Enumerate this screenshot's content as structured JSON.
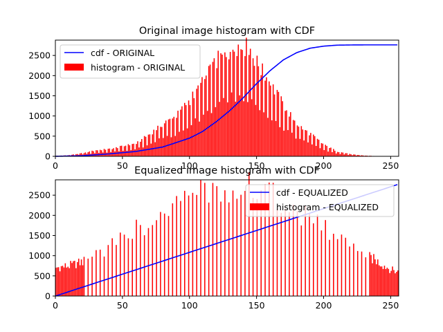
{
  "chart_data": [
    {
      "type": "bar",
      "title": "Original image histogram with CDF",
      "xlabel": "",
      "ylabel": "",
      "xlim": [
        0,
        256
      ],
      "ylim": [
        0,
        2880
      ],
      "xticks": [
        "0",
        "50",
        "100",
        "150",
        "200",
        "250"
      ],
      "yticks": [
        "0",
        "500",
        "1000",
        "1500",
        "2000",
        "2500"
      ],
      "legend_position": "upper-left",
      "series": [
        {
          "name": "cdf - ORIGINAL",
          "kind": "line",
          "color": "#0000ff",
          "x": [
            0,
            20,
            40,
            60,
            80,
            100,
            110,
            120,
            130,
            140,
            150,
            160,
            170,
            180,
            190,
            200,
            210,
            220,
            230,
            255
          ],
          "values": [
            0,
            15,
            60,
            120,
            230,
            450,
            620,
            860,
            1130,
            1450,
            1800,
            2120,
            2390,
            2570,
            2680,
            2730,
            2755,
            2760,
            2762,
            2762
          ]
        },
        {
          "name": "histogram - ORIGINAL",
          "kind": "bar",
          "color": "#ff0000",
          "x": [
            0,
            10,
            20,
            30,
            40,
            50,
            60,
            70,
            80,
            90,
            100,
            110,
            120,
            130,
            135,
            140,
            145,
            150,
            160,
            170,
            180,
            190,
            200,
            210,
            220,
            230,
            240,
            255
          ],
          "values": [
            10,
            30,
            80,
            150,
            180,
            250,
            320,
            550,
            820,
            1000,
            1400,
            1850,
            2350,
            2650,
            2750,
            2720,
            2650,
            2300,
            1800,
            1250,
            800,
            550,
            280,
            120,
            50,
            20,
            5,
            0
          ]
        }
      ]
    },
    {
      "type": "bar",
      "title": "Equalized image histogram with CDF",
      "xlabel": "",
      "ylabel": "",
      "xlim": [
        0,
        256
      ],
      "ylim": [
        0,
        2880
      ],
      "xticks": [
        "0",
        "50",
        "100",
        "150",
        "200",
        "250"
      ],
      "yticks": [
        "0",
        "500",
        "1000",
        "1500",
        "2000",
        "2500"
      ],
      "legend_position": "upper-right",
      "series": [
        {
          "name": "cdf - EQUALIZED",
          "kind": "line",
          "color": "#0000ff",
          "x": [
            0,
            255
          ],
          "values": [
            0,
            2762
          ]
        },
        {
          "name": "histogram - EQUALIZED",
          "kind": "bar",
          "color": "#ff0000",
          "x": [
            0,
            10,
            20,
            30,
            40,
            50,
            60,
            70,
            80,
            90,
            100,
            110,
            120,
            130,
            135,
            140,
            145,
            150,
            160,
            170,
            180,
            190,
            200,
            210,
            220,
            230,
            240,
            250,
            255
          ],
          "values": [
            700,
            750,
            850,
            1000,
            1200,
            1450,
            1650,
            1850,
            2050,
            2250,
            2400,
            2550,
            2650,
            2720,
            2750,
            2740,
            2720,
            2650,
            2500,
            2300,
            2100,
            1900,
            1700,
            1450,
            1250,
            1050,
            850,
            650,
            600
          ]
        }
      ]
    }
  ]
}
